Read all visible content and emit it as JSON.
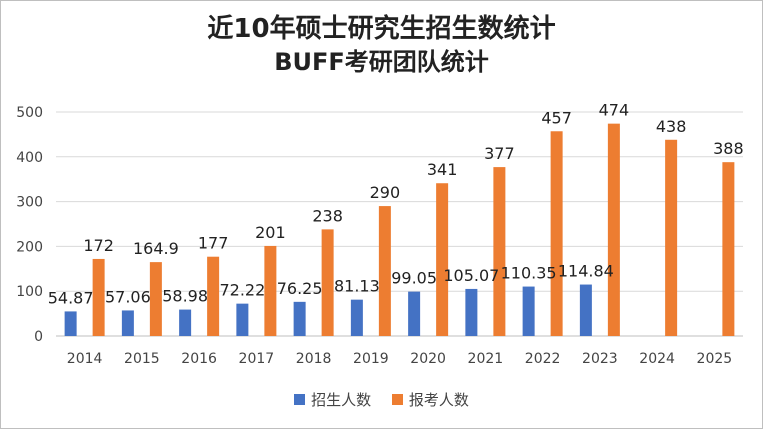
{
  "chart_data": {
    "type": "bar",
    "title_line1": "近10年硕士研究生招生数统计",
    "title_line2": "BUFF考研团队统计",
    "categories": [
      "2014",
      "2015",
      "2016",
      "2017",
      "2018",
      "2019",
      "2020",
      "2021",
      "2022",
      "2023",
      "2024",
      "2025"
    ],
    "series": [
      {
        "name": "招生人数",
        "color": "#4472C4",
        "values": [
          54.87,
          57.06,
          58.98,
          72.22,
          76.25,
          81.13,
          99.05,
          105.07,
          110.35,
          114.84,
          null,
          null
        ]
      },
      {
        "name": "报考人数",
        "color": "#ED7D31",
        "values": [
          172,
          164.9,
          177,
          201,
          238,
          290,
          341,
          377,
          457,
          474,
          438,
          388
        ]
      }
    ],
    "ylim": [
      0,
      500
    ],
    "yticks": [
      0,
      100,
      200,
      300,
      400,
      500
    ],
    "grid": true,
    "legend": "bottom"
  }
}
